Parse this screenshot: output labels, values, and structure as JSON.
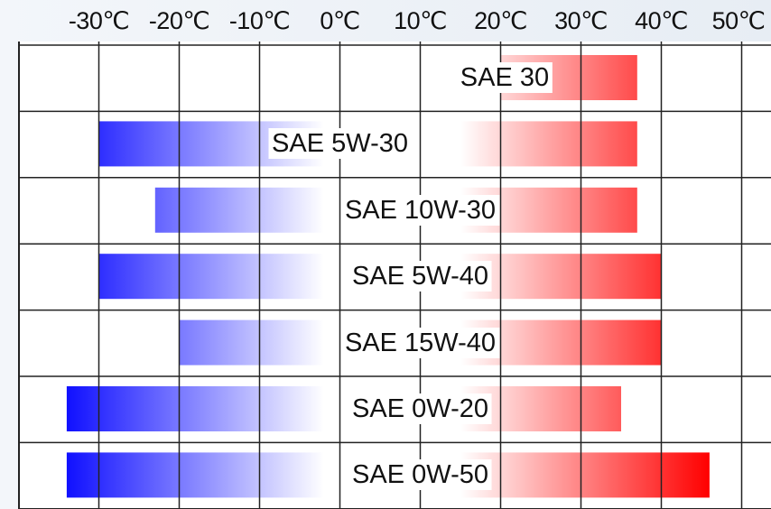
{
  "chart_data": {
    "type": "bar",
    "orientation": "horizontal-range",
    "title": "",
    "xlabel": "",
    "ylabel": "",
    "x_ticks": [
      "-30℃",
      "-20℃",
      "-10℃",
      "0℃",
      "10℃",
      "20℃",
      "30℃",
      "40℃",
      "50℃"
    ],
    "x_tick_values": [
      -30,
      -20,
      -10,
      0,
      10,
      20,
      30,
      40,
      50
    ],
    "xlim": [
      -40,
      50
    ],
    "grid": true,
    "series": [
      {
        "label": "SAE 30",
        "min": null,
        "max": 37
      },
      {
        "label": "SAE 5W-30",
        "min": -30,
        "max": 37
      },
      {
        "label": "SAE 10W-30",
        "min": -23,
        "max": 37
      },
      {
        "label": "SAE 5W-40",
        "min": -30,
        "max": 40
      },
      {
        "label": "SAE 15W-40",
        "min": -20,
        "max": 40
      },
      {
        "label": "SAE 0W-20",
        "min": -34,
        "max": 35
      },
      {
        "label": "SAE 0W-50",
        "min": -34,
        "max": 46
      }
    ],
    "colors": {
      "cold": "#1010ff",
      "hot": "#ff0000",
      "grid": "#222222"
    }
  }
}
